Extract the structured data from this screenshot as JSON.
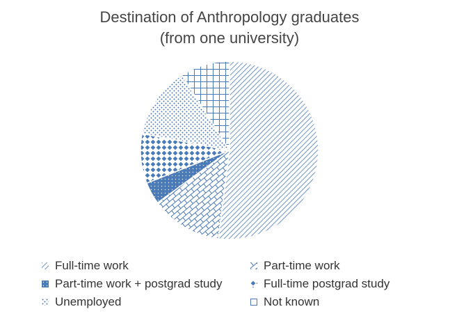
{
  "chart_data": {
    "type": "pie",
    "title_lines": [
      "Destination of Anthropology graduates",
      "(from one university)"
    ],
    "slices": [
      {
        "label": "Full-time work",
        "value": 52,
        "pattern": "diag-lines"
      },
      {
        "label": "Part-time work",
        "value": 13,
        "pattern": "brick"
      },
      {
        "label": "Part-time work + postgrad study",
        "value": 4,
        "pattern": "solid-dots"
      },
      {
        "label": "Full-time postgrad study",
        "value": 9,
        "pattern": "diamonds"
      },
      {
        "label": "Unemployed",
        "value": 13,
        "pattern": "dots"
      },
      {
        "label": "Not known",
        "value": 9,
        "pattern": "grid"
      }
    ],
    "legend_position": "bottom",
    "colors": {
      "primary": "#4a7ab8",
      "background": "#ffffff"
    }
  }
}
